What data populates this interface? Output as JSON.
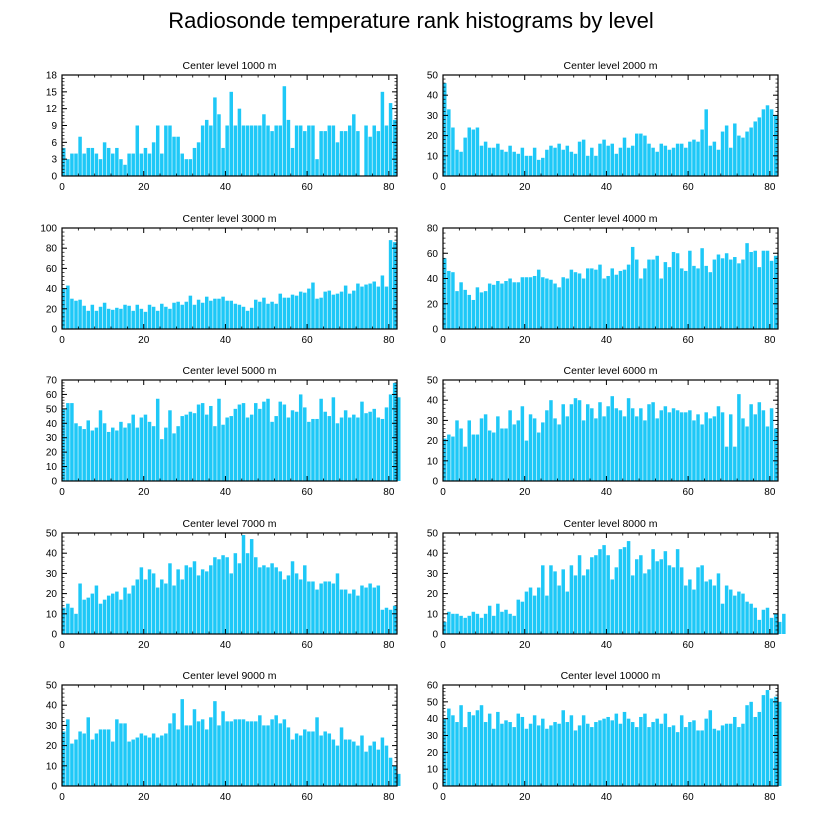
{
  "title": "Radiosonde temperature rank histograms by level",
  "colors": {
    "bar": "#1ec8f7",
    "axis": "#000000",
    "background": "#ffffff"
  },
  "chart_data": [
    {
      "type": "bar",
      "title": "Center level 1000 m",
      "xlim": [
        0,
        82
      ],
      "ylim": [
        0,
        18
      ],
      "xticks": [
        0,
        20,
        40,
        60,
        80
      ],
      "yticks": [
        0,
        3,
        6,
        9,
        12,
        15,
        18
      ],
      "values": [
        5,
        3,
        4,
        4,
        7,
        4,
        5,
        5,
        4,
        3,
        6,
        5,
        4,
        5,
        3,
        2,
        4,
        4,
        9,
        4,
        5,
        4,
        6,
        9,
        4,
        9,
        9,
        7,
        7,
        4,
        3,
        3,
        5,
        6,
        9,
        10,
        9,
        14,
        11,
        5,
        9,
        15,
        9,
        12,
        9,
        9,
        9,
        9,
        9,
        11,
        9,
        8,
        9,
        9,
        16,
        10,
        5,
        9,
        9,
        8,
        9,
        9,
        3,
        8,
        8,
        9,
        9,
        6,
        8,
        8,
        9,
        11,
        8,
        0,
        9,
        7,
        9,
        8,
        15,
        9,
        13,
        10
      ]
    },
    {
      "type": "bar",
      "title": "Center level 2000 m",
      "xlim": [
        0,
        82
      ],
      "ylim": [
        0,
        50
      ],
      "xticks": [
        0,
        20,
        40,
        60,
        80
      ],
      "yticks": [
        0,
        10,
        20,
        30,
        40,
        50
      ],
      "values": [
        46,
        33,
        24,
        13,
        12,
        19,
        24,
        23,
        24,
        15,
        17,
        14,
        14,
        16,
        13,
        12,
        15,
        12,
        11,
        14,
        10,
        10,
        14,
        8,
        9,
        13,
        15,
        14,
        16,
        13,
        15,
        12,
        11,
        17,
        18,
        10,
        14,
        10,
        16,
        18,
        15,
        16,
        11,
        14,
        19,
        14,
        15,
        21,
        21,
        20,
        16,
        14,
        12,
        16,
        15,
        13,
        14,
        16,
        16,
        14,
        17,
        18,
        17,
        23,
        33,
        15,
        17,
        13,
        22,
        25,
        14,
        26,
        20,
        19,
        22,
        24,
        27,
        29,
        33,
        35,
        33,
        30
      ]
    },
    {
      "type": "bar",
      "title": "Center level 3000 m",
      "xlim": [
        0,
        82
      ],
      "ylim": [
        0,
        100
      ],
      "xticks": [
        0,
        20,
        40,
        60,
        80
      ],
      "yticks": [
        0,
        20,
        40,
        60,
        80,
        100
      ],
      "values": [
        40,
        43,
        30,
        28,
        29,
        23,
        18,
        24,
        18,
        22,
        26,
        20,
        19,
        21,
        20,
        24,
        23,
        18,
        24,
        20,
        17,
        24,
        22,
        18,
        25,
        22,
        20,
        26,
        27,
        24,
        27,
        33,
        24,
        29,
        26,
        32,
        28,
        30,
        30,
        32,
        28,
        28,
        25,
        24,
        22,
        18,
        21,
        29,
        27,
        31,
        25,
        27,
        25,
        35,
        31,
        31,
        34,
        33,
        37,
        36,
        40,
        46,
        30,
        31,
        37,
        38,
        34,
        35,
        37,
        43,
        35,
        38,
        45,
        42,
        44,
        45,
        47,
        42,
        53,
        42,
        88,
        86
      ]
    },
    {
      "type": "bar",
      "title": "Center level 4000 m",
      "xlim": [
        0,
        82
      ],
      "ylim": [
        0,
        80
      ],
      "xticks": [
        0,
        20,
        40,
        60,
        80
      ],
      "yticks": [
        0,
        20,
        40,
        60,
        80
      ],
      "values": [
        56,
        46,
        45,
        30,
        37,
        31,
        27,
        23,
        33,
        29,
        30,
        36,
        35,
        38,
        36,
        38,
        40,
        37,
        37,
        41,
        41,
        41,
        42,
        47,
        41,
        40,
        39,
        36,
        33,
        41,
        40,
        47,
        45,
        44,
        40,
        48,
        48,
        47,
        51,
        40,
        42,
        48,
        43,
        46,
        47,
        51,
        65,
        55,
        40,
        48,
        55,
        55,
        58,
        40,
        53,
        49,
        61,
        60,
        48,
        46,
        62,
        50,
        48,
        64,
        50,
        45,
        55,
        59,
        56,
        60,
        55,
        57,
        52,
        55,
        68,
        61,
        62,
        49,
        62,
        62,
        54,
        58
      ]
    },
    {
      "type": "bar",
      "title": "Center level 5000 m",
      "xlim": [
        0,
        82
      ],
      "ylim": [
        0,
        70
      ],
      "xticks": [
        0,
        20,
        40,
        60,
        80
      ],
      "yticks": [
        0,
        10,
        20,
        30,
        40,
        50,
        60,
        70
      ],
      "values": [
        50,
        54,
        54,
        40,
        38,
        36,
        42,
        35,
        37,
        49,
        40,
        34,
        37,
        35,
        41,
        37,
        40,
        46,
        37,
        44,
        46,
        41,
        38,
        57,
        29,
        37,
        49,
        33,
        38,
        45,
        46,
        48,
        47,
        53,
        54,
        46,
        52,
        38,
        57,
        39,
        44,
        45,
        50,
        53,
        54,
        44,
        46,
        54,
        50,
        55,
        57,
        41,
        45,
        55,
        53,
        44,
        49,
        48,
        60,
        51,
        41,
        43,
        43,
        57,
        48,
        45,
        58,
        40,
        44,
        49,
        44,
        46,
        44,
        55,
        47,
        48,
        50,
        44,
        43,
        51,
        60,
        68,
        58
      ]
    },
    {
      "type": "bar",
      "title": "Center level 6000 m",
      "xlim": [
        0,
        82
      ],
      "ylim": [
        0,
        50
      ],
      "xticks": [
        0,
        20,
        40,
        60,
        80
      ],
      "yticks": [
        0,
        10,
        20,
        30,
        40,
        50
      ],
      "values": [
        21,
        23,
        22,
        30,
        26,
        17,
        30,
        23,
        23,
        31,
        33,
        25,
        24,
        32,
        26,
        26,
        35,
        28,
        30,
        37,
        20,
        33,
        31,
        24,
        29,
        35,
        40,
        31,
        28,
        38,
        32,
        38,
        41,
        40,
        30,
        38,
        36,
        31,
        39,
        32,
        37,
        42,
        36,
        35,
        32,
        41,
        36,
        32,
        36,
        30,
        38,
        39,
        31,
        35,
        37,
        34,
        36,
        35,
        34,
        34,
        35,
        30,
        33,
        28,
        34,
        31,
        32,
        37,
        34,
        17,
        33,
        17,
        43,
        31,
        27,
        38,
        33,
        39,
        35,
        27,
        36,
        26
      ]
    },
    {
      "type": "bar",
      "title": "Center level 7000 m",
      "xlim": [
        0,
        82
      ],
      "ylim": [
        0,
        50
      ],
      "xticks": [
        0,
        20,
        40,
        60,
        80
      ],
      "yticks": [
        0,
        10,
        20,
        30,
        40,
        50
      ],
      "values": [
        13,
        15,
        13,
        10,
        25,
        17,
        18,
        20,
        24,
        15,
        17,
        19,
        20,
        21,
        17,
        23,
        20,
        24,
        27,
        33,
        27,
        32,
        30,
        23,
        27,
        25,
        35,
        24,
        32,
        27,
        34,
        33,
        36,
        29,
        32,
        31,
        34,
        38,
        37,
        39,
        38,
        30,
        40,
        35,
        49,
        40,
        47,
        38,
        33,
        34,
        33,
        35,
        33,
        31,
        27,
        29,
        36,
        30,
        27,
        34,
        26,
        26,
        22,
        25,
        26,
        26,
        25,
        30,
        22,
        22,
        20,
        22,
        19,
        24,
        23,
        25,
        23,
        24,
        12,
        13,
        12,
        14
      ]
    },
    {
      "type": "bar",
      "title": "Center level 8000 m",
      "xlim": [
        0,
        82
      ],
      "ylim": [
        0,
        50
      ],
      "xticks": [
        0,
        20,
        40,
        60,
        80
      ],
      "yticks": [
        0,
        10,
        20,
        30,
        40,
        50
      ],
      "values": [
        6,
        11,
        10,
        10,
        9,
        8,
        9,
        11,
        10,
        8,
        10,
        14,
        9,
        15,
        11,
        12,
        10,
        9,
        17,
        16,
        21,
        23,
        19,
        23,
        34,
        19,
        34,
        31,
        24,
        32,
        21,
        34,
        29,
        39,
        29,
        32,
        38,
        39,
        42,
        44,
        39,
        27,
        33,
        42,
        43,
        46,
        29,
        37,
        39,
        30,
        32,
        42,
        36,
        37,
        41,
        34,
        33,
        42,
        33,
        24,
        27,
        22,
        33,
        34,
        26,
        27,
        24,
        30,
        15,
        24,
        22,
        19,
        21,
        20,
        16,
        15,
        13,
        7,
        12,
        13,
        8,
        10,
        6,
        10
      ]
    },
    {
      "type": "bar",
      "title": "Center level 9000 m",
      "xlim": [
        0,
        82
      ],
      "ylim": [
        0,
        50
      ],
      "xticks": [
        0,
        20,
        40,
        60,
        80
      ],
      "yticks": [
        0,
        10,
        20,
        30,
        40,
        50
      ],
      "values": [
        27,
        33,
        21,
        23,
        27,
        26,
        34,
        23,
        26,
        28,
        28,
        28,
        22,
        33,
        31,
        31,
        22,
        23,
        24,
        26,
        25,
        24,
        26,
        24,
        25,
        26,
        31,
        36,
        28,
        43,
        30,
        30,
        38,
        32,
        33,
        28,
        34,
        42,
        30,
        37,
        32,
        32,
        33,
        33,
        33,
        32,
        32,
        32,
        35,
        30,
        30,
        33,
        35,
        31,
        33,
        29,
        23,
        26,
        25,
        28,
        27,
        27,
        34,
        25,
        27,
        26,
        23,
        20,
        29,
        23,
        23,
        22,
        20,
        25,
        17,
        20,
        22,
        18,
        24,
        20,
        14,
        10,
        6
      ]
    },
    {
      "type": "bar",
      "title": "Center level 10000 m",
      "xlim": [
        0,
        82
      ],
      "ylim": [
        0,
        60
      ],
      "xticks": [
        0,
        20,
        40,
        60,
        80
      ],
      "yticks": [
        0,
        10,
        20,
        30,
        40,
        50,
        60
      ],
      "values": [
        40,
        46,
        42,
        38,
        48,
        35,
        44,
        42,
        45,
        48,
        38,
        43,
        34,
        44,
        37,
        39,
        38,
        35,
        43,
        41,
        34,
        37,
        42,
        36,
        40,
        34,
        36,
        38,
        37,
        45,
        38,
        42,
        33,
        36,
        42,
        37,
        35,
        38,
        39,
        40,
        41,
        39,
        43,
        37,
        44,
        40,
        38,
        35,
        41,
        43,
        35,
        38,
        40,
        37,
        43,
        35,
        36,
        32,
        42,
        35,
        38,
        39,
        33,
        33,
        40,
        45,
        34,
        33,
        36,
        37,
        37,
        41,
        35,
        37,
        48,
        50,
        41,
        44,
        54,
        57,
        52,
        53,
        50
      ]
    }
  ]
}
